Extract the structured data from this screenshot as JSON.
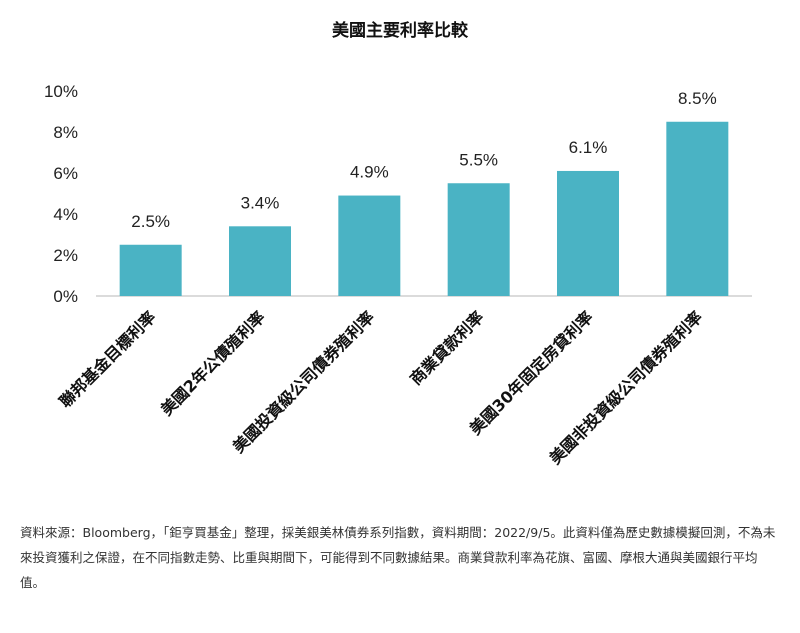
{
  "chart_data": {
    "type": "bar",
    "title": "美國主要利率比較",
    "categories": [
      "聯邦基金目標利率",
      "美國2年公債殖利率",
      "美國投資級公司債券殖利率",
      "商業貸款利率",
      "美國30年固定房貸利率",
      "美國非投資級公司債券殖利率"
    ],
    "values": [
      2.5,
      3.4,
      4.9,
      5.5,
      6.1,
      8.5
    ],
    "value_labels": [
      "2.5%",
      "3.4%",
      "4.9%",
      "5.5%",
      "6.1%",
      "8.5%"
    ],
    "yticks": [
      "0%",
      "2%",
      "4%",
      "6%",
      "8%",
      "10%"
    ],
    "ylim": [
      0,
      10
    ],
    "xlabel": "",
    "ylabel": "",
    "grid": false,
    "bar_color": "#4ab3c4"
  },
  "footnote": "資料來源：Bloomberg，「鉅亨買基金」整理，採美銀美林債券系列指數，資料期間：2022/9/5。此資料僅為歷史數據模擬回測，不為未來投資獲利之保證，在不同指數走勢、比重與期間下，可能得到不同數據結果。商業貸款利率為花旗、富國、摩根大通與美國銀行平均值。"
}
